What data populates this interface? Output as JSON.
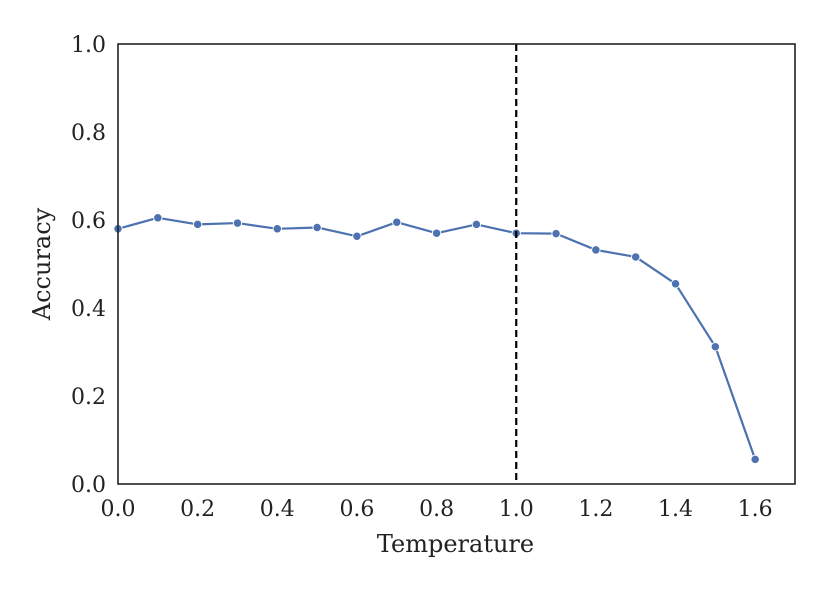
{
  "chart_data": {
    "type": "line",
    "title": "",
    "xlabel": "Temperature",
    "ylabel": "Accuracy",
    "xlim": [
      0.0,
      1.7
    ],
    "ylim": [
      0.0,
      1.0
    ],
    "xticks": [
      0.0,
      0.2,
      0.4,
      0.6,
      0.8,
      1.0,
      1.2,
      1.4,
      1.6
    ],
    "xtick_labels": [
      "0.0",
      "0.2",
      "0.4",
      "0.6",
      "0.8",
      "1.0",
      "1.2",
      "1.4",
      "1.6"
    ],
    "yticks": [
      0.0,
      0.2,
      0.4,
      0.6,
      0.8,
      1.0
    ],
    "ytick_labels": [
      "0.0",
      "0.2",
      "0.4",
      "0.6",
      "0.8",
      "1.0"
    ],
    "grid": false,
    "legend": "none",
    "series": [
      {
        "color": "#4c72b0",
        "marker": "circle",
        "x": [
          0.0,
          0.1,
          0.2,
          0.3,
          0.4,
          0.5,
          0.6,
          0.7,
          0.8,
          0.9,
          1.0,
          1.1,
          1.2,
          1.3,
          1.4,
          1.5,
          1.6
        ],
        "y": [
          0.58,
          0.605,
          0.59,
          0.593,
          0.58,
          0.583,
          0.563,
          0.595,
          0.57,
          0.59,
          0.57,
          0.569,
          0.532,
          0.516,
          0.455,
          0.312,
          0.056
        ]
      }
    ],
    "annotations": [
      {
        "type": "vline",
        "x": 1.0,
        "style": "dashed",
        "color": "#000000"
      }
    ]
  }
}
